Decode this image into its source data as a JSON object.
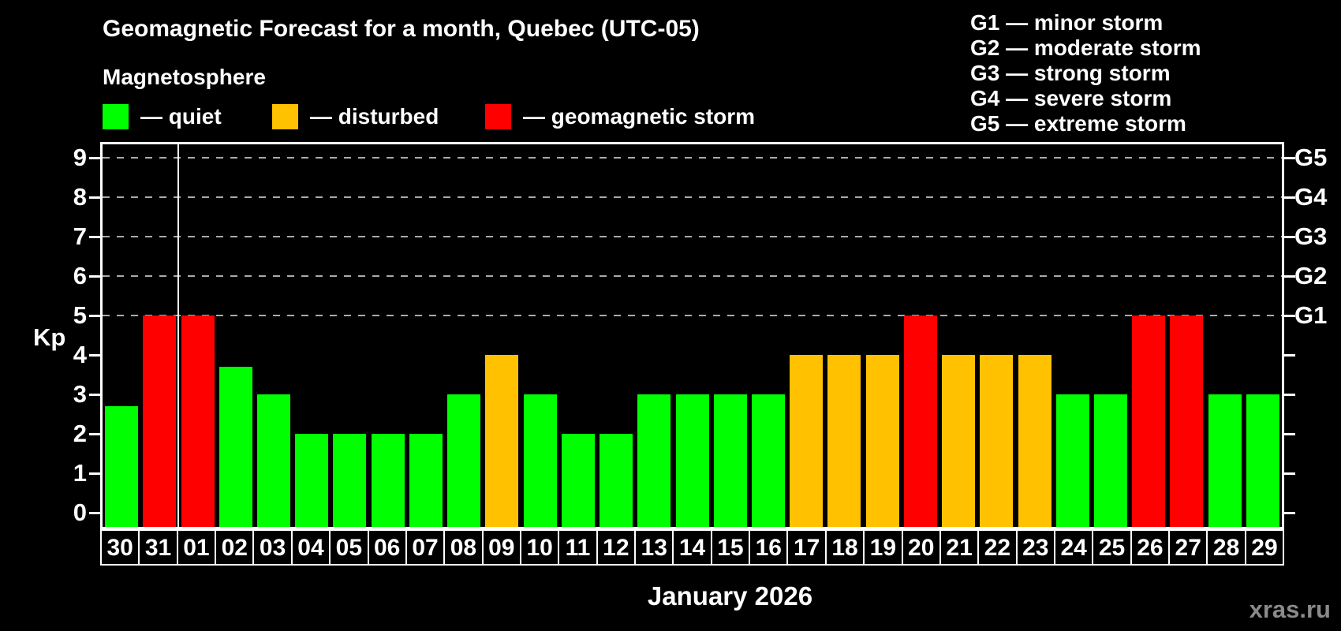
{
  "header": {
    "title": "Geomagnetic Forecast for a month, Quebec (UTC-05)",
    "subtitle": "Magnetosphere",
    "legend": [
      {
        "status": "quiet",
        "label": "— quiet"
      },
      {
        "status": "disturbed",
        "label": "— disturbed"
      },
      {
        "status": "storm",
        "label": "— geomagnetic storm"
      }
    ],
    "g_scale_legend": [
      "G1 — minor storm",
      "G2 — moderate storm",
      "G3 — strong storm",
      "G4 — severe storm",
      "G5 — extreme storm"
    ]
  },
  "colors": {
    "quiet": "#00ff00",
    "disturbed": "#ffc100",
    "storm": "#ff0000",
    "grid": "#aaaaaa",
    "axis": "#ffffff",
    "watermark": "#8a8a8a",
    "background": "#000000"
  },
  "chart_data": {
    "type": "bar",
    "title": "Geomagnetic Forecast for a month, Quebec (UTC-05)",
    "ylabel": "Kp",
    "x_categories": [
      "30",
      "31",
      "01",
      "02",
      "03",
      "04",
      "05",
      "06",
      "07",
      "08",
      "09",
      "10",
      "11",
      "12",
      "13",
      "14",
      "15",
      "16",
      "17",
      "18",
      "19",
      "20",
      "21",
      "22",
      "23",
      "24",
      "25",
      "26",
      "27",
      "28",
      "29"
    ],
    "values": [
      2.7,
      5,
      5,
      3.7,
      3,
      2,
      2,
      2,
      2,
      3,
      4,
      3,
      2,
      2,
      3,
      3,
      3,
      3,
      4,
      4,
      4,
      5,
      4,
      4,
      4,
      3,
      3,
      5,
      5,
      3,
      3
    ],
    "statuses": [
      "quiet",
      "storm",
      "storm",
      "quiet",
      "quiet",
      "quiet",
      "quiet",
      "quiet",
      "quiet",
      "quiet",
      "disturbed",
      "quiet",
      "quiet",
      "quiet",
      "quiet",
      "quiet",
      "quiet",
      "quiet",
      "disturbed",
      "disturbed",
      "disturbed",
      "storm",
      "disturbed",
      "disturbed",
      "disturbed",
      "quiet",
      "quiet",
      "storm",
      "storm",
      "quiet",
      "quiet"
    ],
    "y_ticks": [
      0,
      1,
      2,
      3,
      4,
      5,
      6,
      7,
      8,
      9
    ],
    "ylim": [
      -0.4,
      9.4
    ],
    "grid_values": [
      5,
      6,
      7,
      8,
      9
    ],
    "right_axis_labels": [
      {
        "value": 5,
        "label": "G1"
      },
      {
        "value": 6,
        "label": "G2"
      },
      {
        "value": 7,
        "label": "G3"
      },
      {
        "value": 8,
        "label": "G4"
      },
      {
        "value": 9,
        "label": "G5"
      }
    ],
    "month_boundary_after_index": 1,
    "footer_label": "January 2026"
  },
  "watermark": "xras.ru"
}
